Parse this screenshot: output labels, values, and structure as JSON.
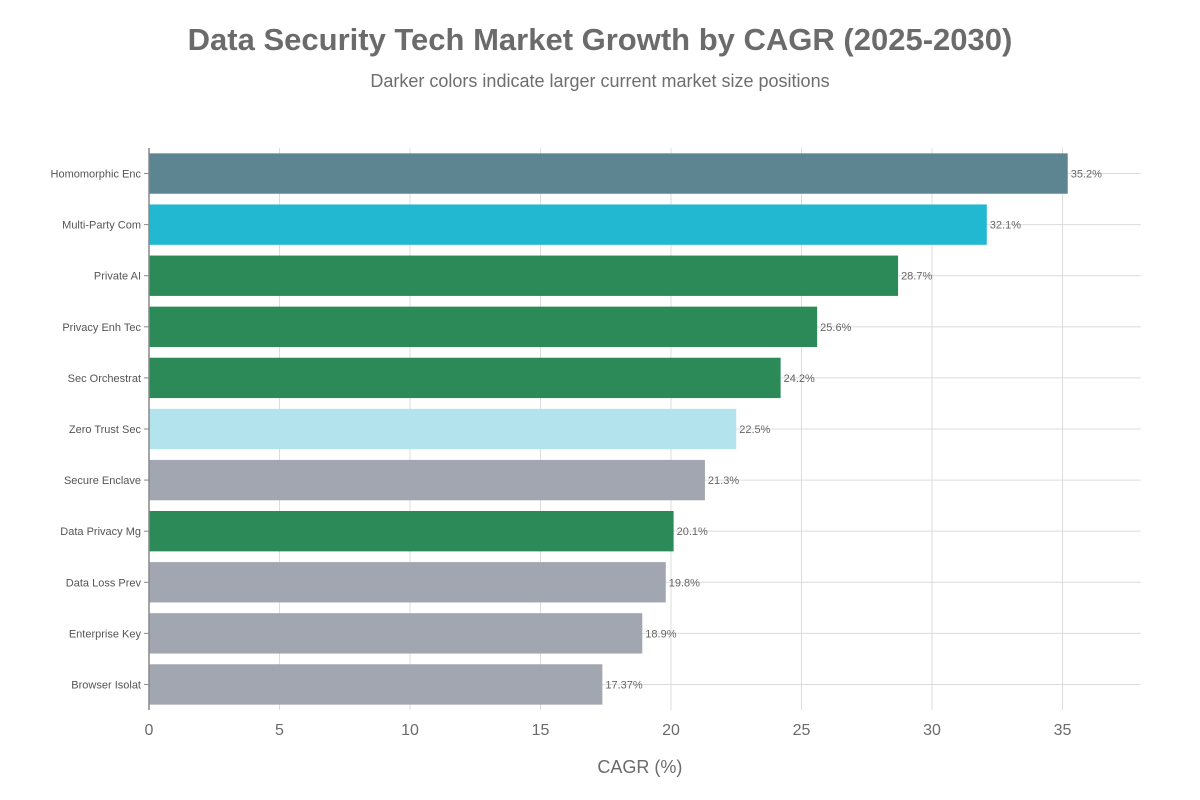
{
  "chart_data": {
    "type": "bar",
    "orientation": "horizontal",
    "title": "Data Security Tech Market Growth by CAGR (2025-2030)",
    "subtitle": "Darker colors indicate larger current market size positions",
    "xlabel": "CAGR (%)",
    "ylabel": "",
    "xlim": [
      0,
      38
    ],
    "xticks": [
      0,
      5,
      10,
      15,
      20,
      25,
      30,
      35
    ],
    "grid": true,
    "categories": [
      "Homomorphic Enc",
      "Multi-Party Com",
      "Private AI",
      "Privacy Enh Tec",
      "Sec Orchestrat",
      "Zero Trust Sec",
      "Secure Enclave",
      "Data Privacy Mg",
      "Data Loss Prev",
      "Enterprise Key",
      "Browser Isolat"
    ],
    "values": [
      35.2,
      32.1,
      28.7,
      25.6,
      24.2,
      22.5,
      21.3,
      20.1,
      19.8,
      18.9,
      17.37
    ],
    "value_labels": [
      "35.2%",
      "32.1%",
      "28.7%",
      "25.6%",
      "24.2%",
      "22.5%",
      "21.3%",
      "20.1%",
      "19.8%",
      "18.9%",
      "17.37%"
    ],
    "colors": [
      "#5d8491",
      "#22b8d1",
      "#2c8a58",
      "#2c8a58",
      "#2c8a58",
      "#b3e3ec",
      "#a2a6b0",
      "#2c8a58",
      "#a2a6b0",
      "#a2a6b0",
      "#a2a6b0"
    ]
  }
}
